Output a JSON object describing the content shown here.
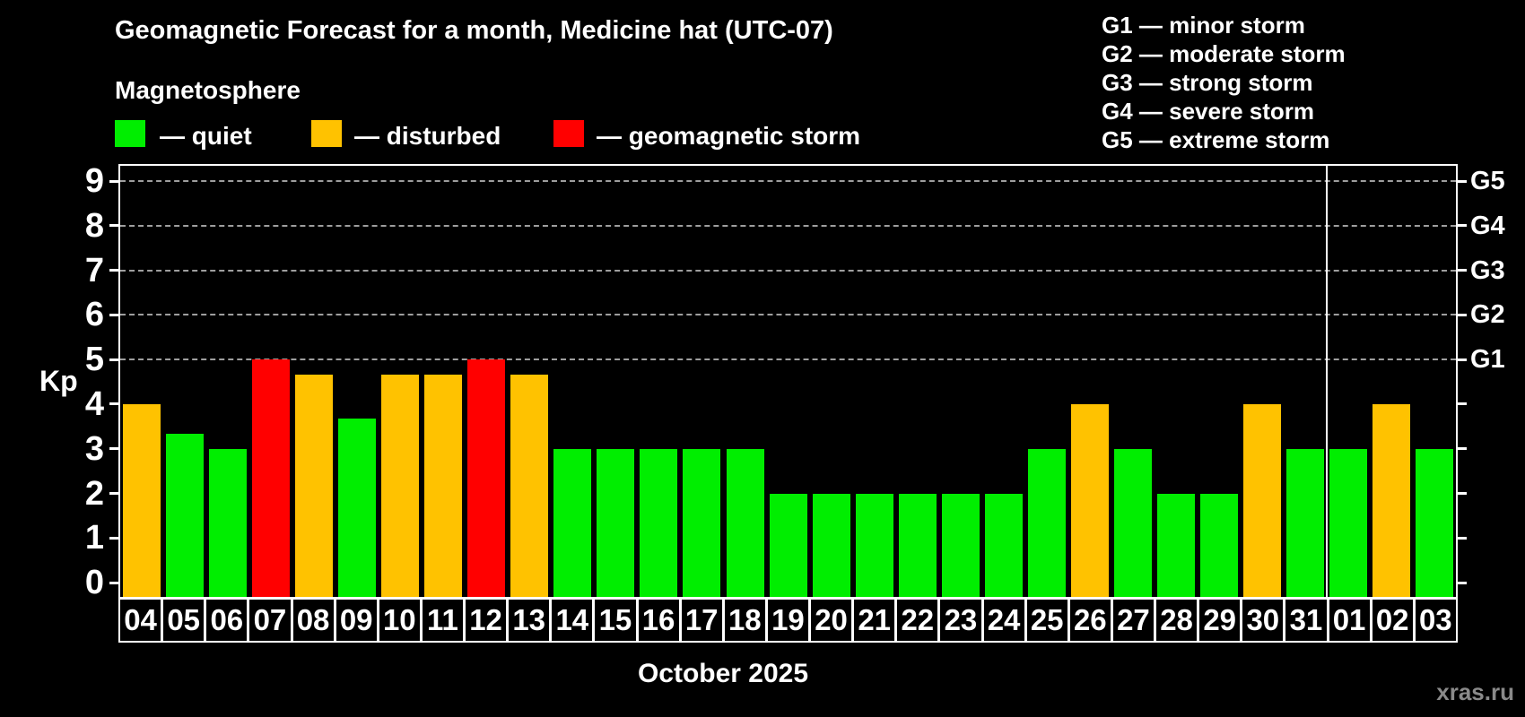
{
  "title": "Geomagnetic Forecast for a month, Medicine hat (UTC-07)",
  "subtitle": "Magnetosphere",
  "bar_legend": [
    {
      "key": "quiet",
      "label": "— quiet"
    },
    {
      "key": "disturbed",
      "label": "— disturbed"
    },
    {
      "key": "storm",
      "label": "— geomagnetic storm"
    }
  ],
  "g_legend": [
    "G1 — minor storm",
    "G2 — moderate storm",
    "G3 — strong storm",
    "G4 — severe storm",
    "G5 — extreme storm"
  ],
  "watermark": "xras.ru",
  "chart_data": {
    "type": "bar",
    "title": "Geomagnetic Forecast for a month, Medicine hat (UTC-07)",
    "ylabel": "Kp",
    "xlabel": "October 2025",
    "ylim": [
      0,
      9
    ],
    "y_ticks": [
      0,
      1,
      2,
      3,
      4,
      5,
      6,
      7,
      8,
      9
    ],
    "gridlines_at": [
      5,
      6,
      7,
      8,
      9
    ],
    "grid": "dashed, only at G-storm levels (Kp 5-9)",
    "right_axis_labels": [
      {
        "kp": 5,
        "label": "G1"
      },
      {
        "kp": 6,
        "label": "G2"
      },
      {
        "kp": 7,
        "label": "G3"
      },
      {
        "kp": 8,
        "label": "G4"
      },
      {
        "kp": 9,
        "label": "G5"
      }
    ],
    "month_separator_after_index": 27,
    "categories": [
      "04",
      "05",
      "06",
      "07",
      "08",
      "09",
      "10",
      "11",
      "12",
      "13",
      "14",
      "15",
      "16",
      "17",
      "18",
      "19",
      "20",
      "21",
      "22",
      "23",
      "24",
      "25",
      "26",
      "27",
      "28",
      "29",
      "30",
      "31",
      "01",
      "02",
      "03"
    ],
    "values": [
      4,
      3.33,
      3,
      5,
      4.67,
      3.67,
      4.67,
      4.67,
      5,
      4.67,
      3,
      3,
      3,
      3,
      3,
      2,
      2,
      2,
      2,
      2,
      2,
      3,
      4,
      3,
      2,
      2,
      4,
      3,
      3,
      4,
      3
    ],
    "statuses": [
      "disturbed",
      "quiet",
      "quiet",
      "storm",
      "disturbed",
      "quiet",
      "disturbed",
      "disturbed",
      "storm",
      "disturbed",
      "quiet",
      "quiet",
      "quiet",
      "quiet",
      "quiet",
      "quiet",
      "quiet",
      "quiet",
      "quiet",
      "quiet",
      "quiet",
      "quiet",
      "disturbed",
      "quiet",
      "quiet",
      "quiet",
      "disturbed",
      "quiet",
      "quiet",
      "disturbed",
      "quiet"
    ],
    "colors": {
      "quiet": "#00ee00",
      "disturbed": "#ffc200",
      "storm": "#ff0000",
      "gridline": "#9e9e9e",
      "axis": "#ffffff",
      "background": "#000000"
    }
  }
}
